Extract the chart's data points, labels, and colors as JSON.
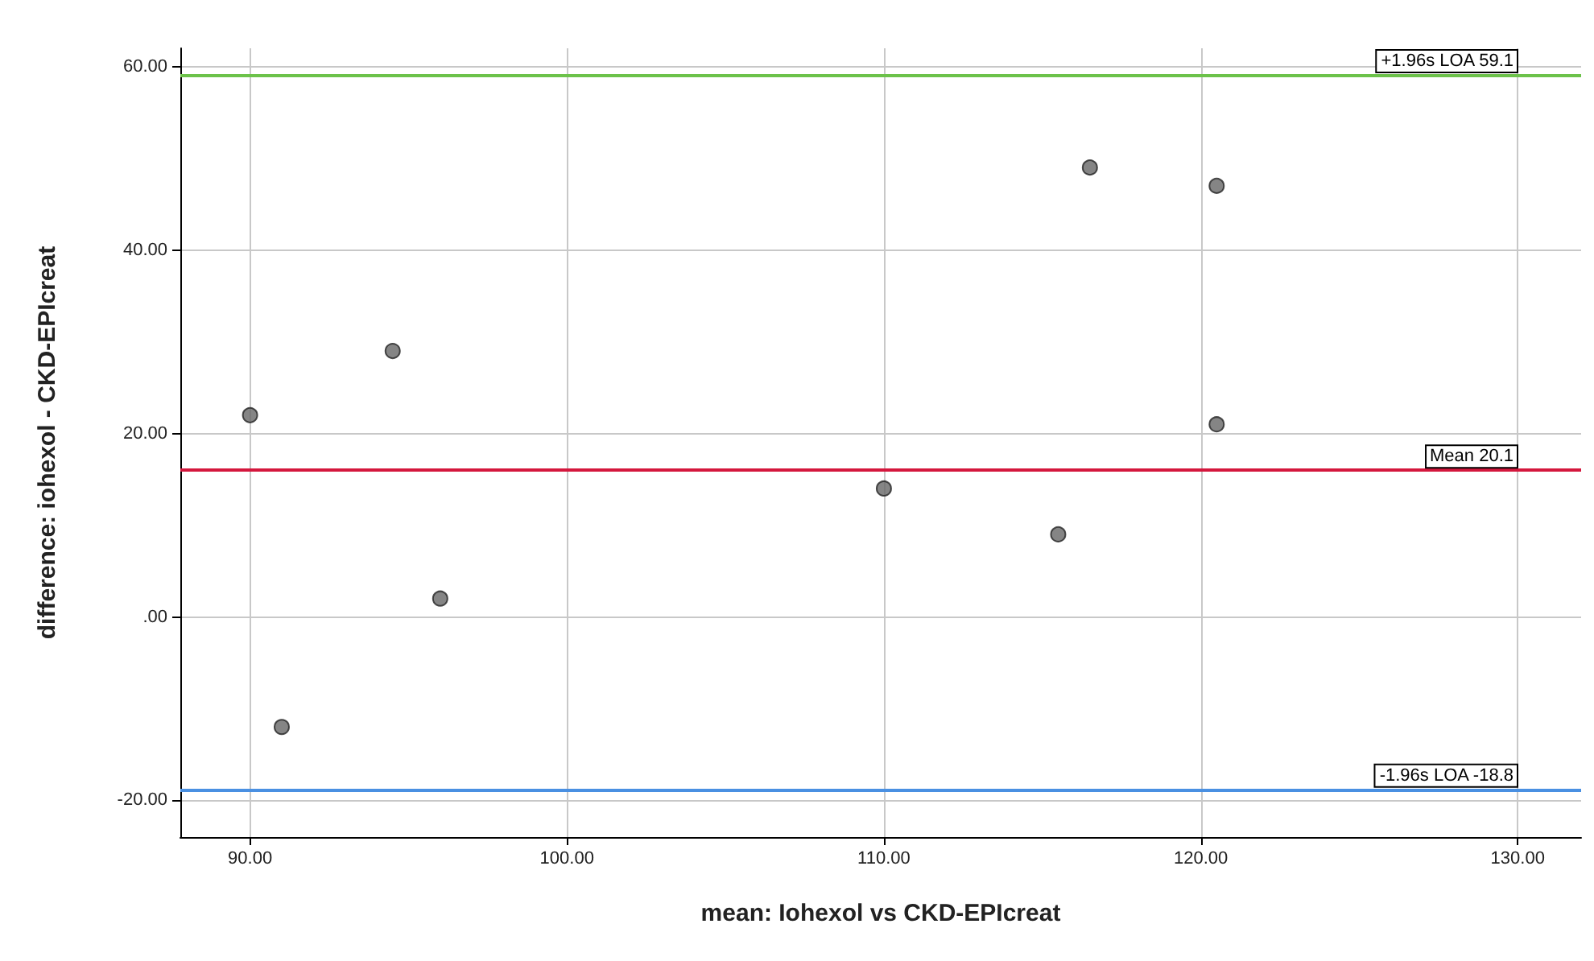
{
  "chart_data": {
    "type": "scatter",
    "xlabel": "mean: Iohexol vs CKD-EPIcreat",
    "ylabel": "difference: iohexol - CKD-EPIcreat",
    "x": [
      90,
      91,
      94.5,
      96,
      110,
      115.5,
      116.5,
      120.5,
      120.5
    ],
    "values": [
      22,
      -12,
      29,
      2,
      14,
      9,
      49,
      47,
      21
    ],
    "color": "#666666",
    "marker": "circle",
    "xlim": [
      87.8,
      132
    ],
    "xticks": [
      {
        "value": 90,
        "label": "90.00"
      },
      {
        "value": 100,
        "label": "100.00"
      },
      {
        "value": 110,
        "label": "110.00"
      },
      {
        "value": 120,
        "label": "120.00"
      },
      {
        "value": 130,
        "label": "130.00"
      }
    ],
    "ylim": [
      -24,
      62
    ],
    "yticks": [
      {
        "value": -20,
        "label": "-20.00"
      },
      {
        "value": 0,
        "label": ".00"
      },
      {
        "value": 20,
        "label": "20.00"
      },
      {
        "value": 40,
        "label": "40.00"
      },
      {
        "value": 60,
        "label": "60.00"
      }
    ],
    "grid": true,
    "ref_lines": [
      {
        "axis": "y",
        "value": 59.1,
        "label": "+1.96s LOA 59.1",
        "color": "#6cc24a"
      },
      {
        "axis": "y",
        "value": 16,
        "label": "Mean 20.1",
        "color": "#d4173d"
      },
      {
        "axis": "y",
        "value": -18.8,
        "label": "-1.96s LOA -18.8",
        "color": "#4a90e2"
      }
    ]
  }
}
